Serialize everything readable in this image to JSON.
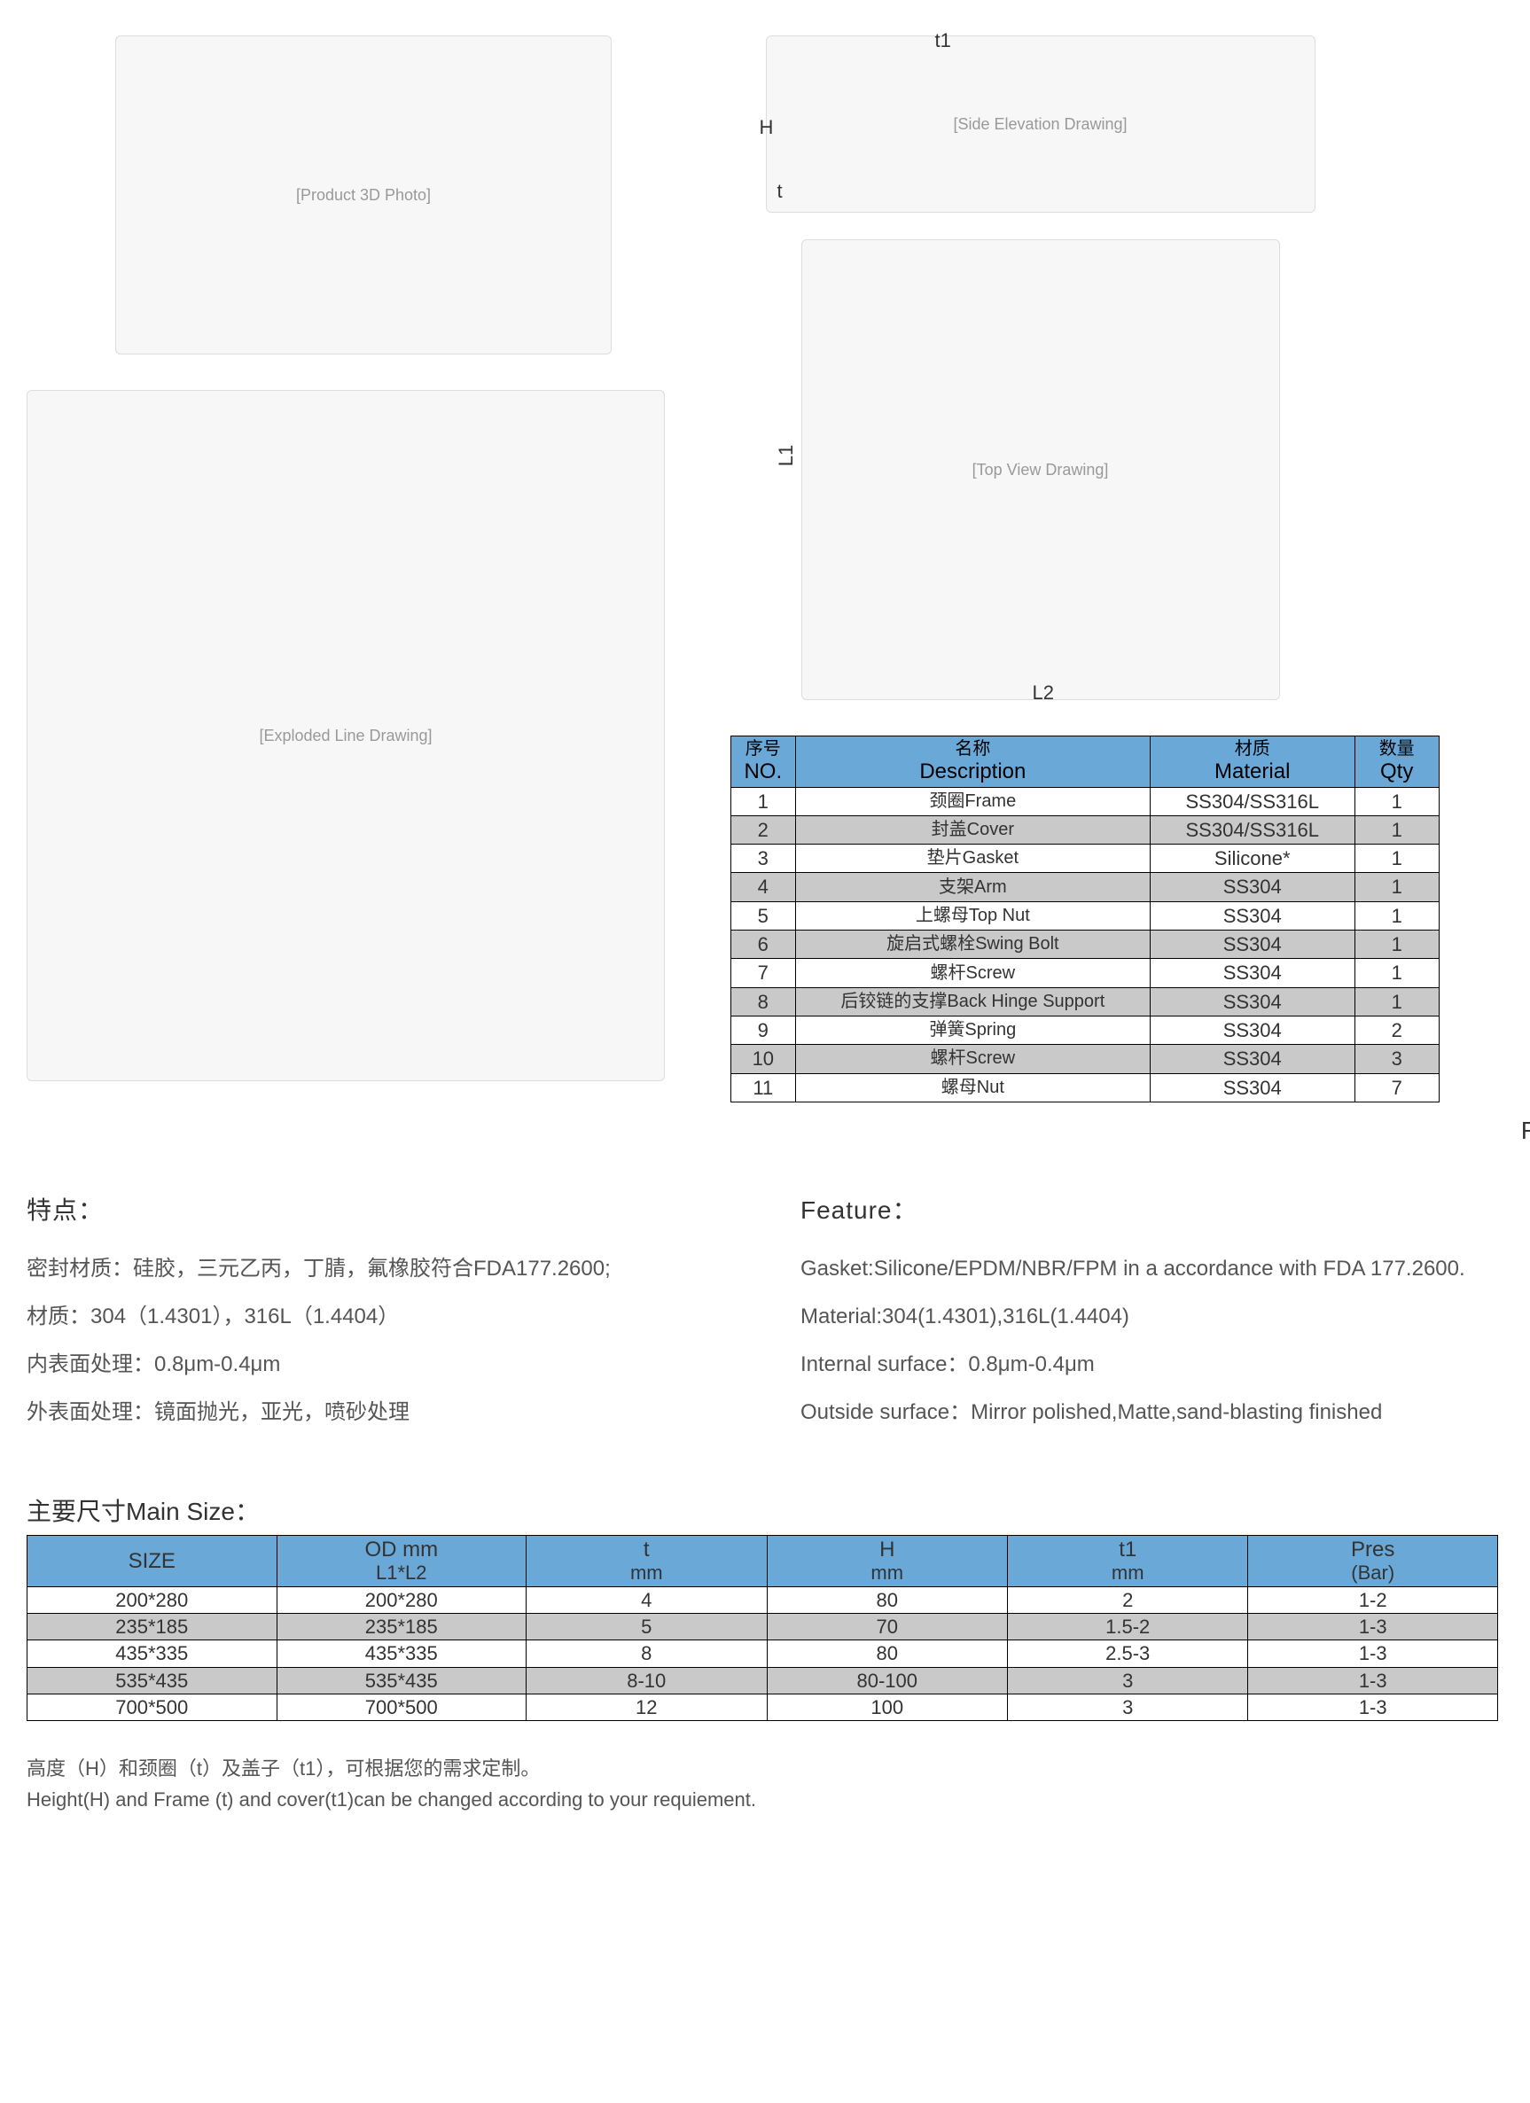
{
  "colors": {
    "header_bg": "#6aa8d8",
    "row_alt_bg": "#c9c9c9",
    "border": "#000000",
    "text": "#333333",
    "muted": "#555555"
  },
  "drawings": {
    "photo_label": "[Product 3D Photo]",
    "exploded_label": "[Exploded Line Drawing]",
    "side_label": "[Side Elevation Drawing]",
    "top_label": "[Top View Drawing]",
    "dim_t1": "t1",
    "dim_H": "H",
    "dim_t": "t",
    "dim_L1": "L1",
    "dim_L2": "L2",
    "r_label": "R"
  },
  "parts_table": {
    "headers": {
      "no": {
        "cn": "序号",
        "en": "NO."
      },
      "desc": {
        "cn": "名称",
        "en": "Description"
      },
      "mat": {
        "cn": "材质",
        "en": "Material"
      },
      "qty": {
        "cn": "数量",
        "en": "Qty"
      }
    },
    "col_widths": [
      "70px",
      "380px",
      "220px",
      "90px"
    ],
    "rows": [
      {
        "no": "1",
        "desc": "颈圈Frame",
        "mat": "SS304/SS316L",
        "qty": "1"
      },
      {
        "no": "2",
        "desc": "封盖Cover",
        "mat": "SS304/SS316L",
        "qty": "1"
      },
      {
        "no": "3",
        "desc": "垫片Gasket",
        "mat": "Silicone*",
        "qty": "1"
      },
      {
        "no": "4",
        "desc": "支架Arm",
        "mat": "SS304",
        "qty": "1"
      },
      {
        "no": "5",
        "desc": "上螺母Top Nut",
        "mat": "SS304",
        "qty": "1"
      },
      {
        "no": "6",
        "desc": "旋启式螺栓Swing Bolt",
        "mat": "SS304",
        "qty": "1"
      },
      {
        "no": "7",
        "desc": "螺杆Screw",
        "mat": "SS304",
        "qty": "1"
      },
      {
        "no": "8",
        "desc": "后铰链的支撑Back Hinge Support",
        "mat": "SS304",
        "qty": "1"
      },
      {
        "no": "9",
        "desc": "弹簧Spring",
        "mat": "SS304",
        "qty": "2"
      },
      {
        "no": "10",
        "desc": "螺杆Screw",
        "mat": "SS304",
        "qty": "3"
      },
      {
        "no": "11",
        "desc": "螺母Nut",
        "mat": "SS304",
        "qty": "7"
      }
    ]
  },
  "features": {
    "cn": {
      "title": "特点：",
      "lines": [
        "密封材质：硅胶，三元乙丙，丁腈，氟橡胶符合FDA177.2600;",
        "材质：304（1.4301），316L（1.4404）",
        "内表面处理：0.8μm-0.4μm",
        "外表面处理：镜面抛光，亚光，喷砂处理"
      ]
    },
    "en": {
      "title": "Feature：",
      "lines": [
        "Gasket:Silicone/EPDM/NBR/FPM in a accordance with FDA 177.2600.",
        "Material:304(1.4301),316L(1.4404)",
        "Internal surface：0.8μm-0.4μm",
        "Outside surface：Mirror polished,Matte,sand-blasting finished"
      ]
    }
  },
  "main_size": {
    "title": "主要尺寸Main Size：",
    "headers": [
      {
        "top": "SIZE",
        "bot": ""
      },
      {
        "top": "OD mm",
        "bot": "L1*L2"
      },
      {
        "top": "t",
        "bot": "mm"
      },
      {
        "top": "H",
        "bot": "mm"
      },
      {
        "top": "t1",
        "bot": "mm"
      },
      {
        "top": "Pres",
        "bot": "(Bar)"
      }
    ],
    "col_widths": [
      "280px",
      "280px",
      "270px",
      "270px",
      "270px",
      "280px"
    ],
    "rows": [
      [
        "200*280",
        "200*280",
        "4",
        "80",
        "2",
        "1-2"
      ],
      [
        "235*185",
        "235*185",
        "5",
        "70",
        "1.5-2",
        "1-3"
      ],
      [
        "435*335",
        "435*335",
        "8",
        "80",
        "2.5-3",
        "1-3"
      ],
      [
        "535*435",
        "535*435",
        "8-10",
        "80-100",
        "3",
        "1-3"
      ],
      [
        "700*500",
        "700*500",
        "12",
        "100",
        "3",
        "1-3"
      ]
    ]
  },
  "footer": {
    "cn": "高度（H）和颈圈（t）及盖子（t1），可根据您的需求定制。",
    "en": "Height(H) and Frame (t) and cover(t1)can be changed according to your requiement."
  }
}
